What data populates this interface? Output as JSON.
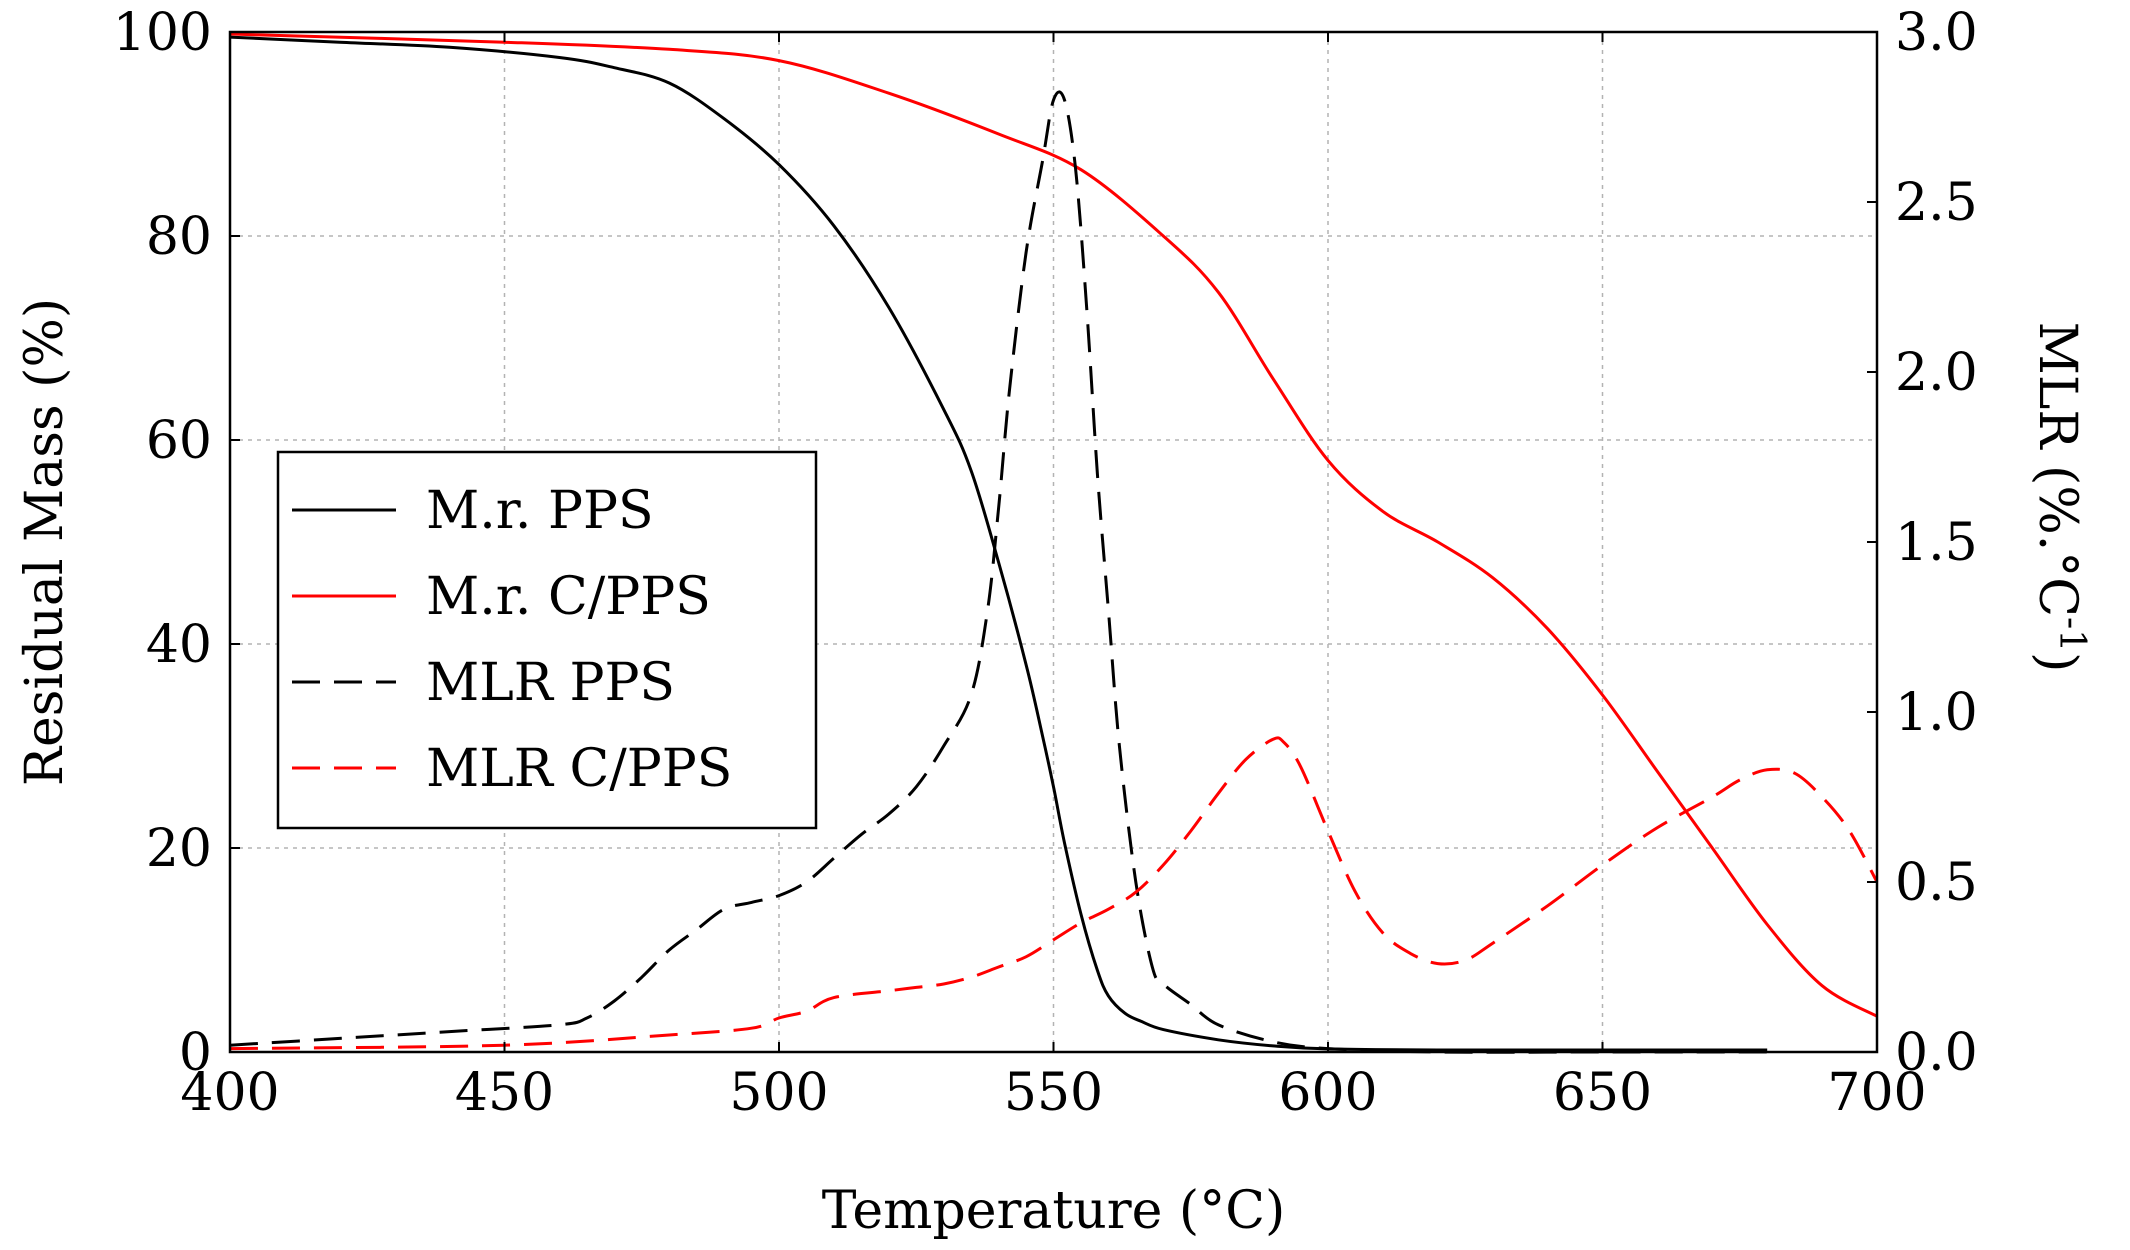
{
  "chart_data": {
    "type": "line",
    "xlabel": "Temperature (°C)",
    "ylabel": "Residual Mass (%)",
    "y2label": "MLR (%.°C",
    "y2label_sup": "-1",
    "y2label_close": ")",
    "xlim": [
      400,
      700
    ],
    "ylim": [
      0,
      100
    ],
    "y2lim": [
      0,
      3.0
    ],
    "xticks": [
      "400",
      "450",
      "500",
      "550",
      "600",
      "650",
      "700"
    ],
    "yticks": [
      "0",
      "20",
      "40",
      "60",
      "80",
      "100"
    ],
    "y2ticks": [
      "0.0",
      "0.5",
      "1.0",
      "1.5",
      "2.0",
      "2.5",
      "3.0"
    ],
    "grid": true,
    "legend_position": "center-left",
    "legend": [
      "M.r. PPS",
      "M.r. C/PPS",
      "MLR PPS",
      "MLR C/PPS"
    ],
    "series": [
      {
        "name": "M.r. PPS",
        "axis": "left",
        "color": "#000000",
        "dash": "solid",
        "x": [
          400,
          420,
          440,
          460,
          470,
          480,
          490,
          500,
          510,
          520,
          530,
          535,
          540,
          545,
          548,
          550,
          552,
          555,
          558,
          560,
          563,
          566,
          570,
          580,
          590,
          600,
          620,
          650,
          680
        ],
        "y": [
          99.5,
          99.0,
          98.5,
          97.5,
          96.5,
          95.0,
          91.5,
          87.0,
          81.0,
          73.0,
          63.0,
          57.0,
          48.0,
          38.0,
          31.0,
          26.0,
          20.5,
          13.5,
          8.0,
          5.5,
          3.8,
          3.0,
          2.2,
          1.2,
          0.6,
          0.3,
          0.2,
          0.2,
          0.2
        ]
      },
      {
        "name": "M.r. C/PPS",
        "axis": "left",
        "color": "#ff0000",
        "dash": "solid",
        "x": [
          400,
          450,
          480,
          500,
          520,
          540,
          555,
          570,
          580,
          590,
          600,
          610,
          620,
          630,
          640,
          650,
          660,
          670,
          680,
          690,
          700
        ],
        "y": [
          99.8,
          99.0,
          98.3,
          97.2,
          94.0,
          90.0,
          86.5,
          80.0,
          74.5,
          66.0,
          58.0,
          53.0,
          50.0,
          46.5,
          41.5,
          35.0,
          27.5,
          20.0,
          12.5,
          6.5,
          3.5
        ]
      },
      {
        "name": "MLR PPS",
        "axis": "right",
        "color": "#000000",
        "dash": "dashed",
        "x": [
          400,
          420,
          440,
          460,
          465,
          470,
          475,
          480,
          485,
          490,
          495,
          500,
          505,
          510,
          515,
          520,
          525,
          530,
          535,
          538,
          540,
          542,
          545,
          548,
          550,
          552,
          554,
          556,
          558,
          560,
          562,
          565,
          568,
          570,
          575,
          580,
          590,
          600,
          620,
          650,
          680
        ],
        "y": [
          0.02,
          0.04,
          0.06,
          0.08,
          0.1,
          0.15,
          0.22,
          0.3,
          0.36,
          0.42,
          0.44,
          0.46,
          0.5,
          0.57,
          0.64,
          0.7,
          0.78,
          0.9,
          1.05,
          1.3,
          1.6,
          1.95,
          2.35,
          2.62,
          2.8,
          2.8,
          2.6,
          2.2,
          1.7,
          1.3,
          0.9,
          0.5,
          0.25,
          0.2,
          0.14,
          0.08,
          0.03,
          0.01,
          0.0,
          0.0,
          0.0
        ]
      },
      {
        "name": "MLR C/PPS",
        "axis": "right",
        "color": "#ff0000",
        "dash": "dashed",
        "x": [
          400,
          450,
          480,
          495,
          500,
          505,
          510,
          520,
          525,
          530,
          535,
          540,
          545,
          550,
          555,
          560,
          565,
          570,
          575,
          580,
          585,
          590,
          592,
          595,
          600,
          605,
          610,
          615,
          620,
          625,
          630,
          640,
          650,
          660,
          670,
          675,
          680,
          685,
          690,
          695,
          700
        ],
        "y": [
          0.01,
          0.02,
          0.05,
          0.07,
          0.1,
          0.12,
          0.16,
          0.18,
          0.19,
          0.2,
          0.22,
          0.25,
          0.28,
          0.33,
          0.38,
          0.42,
          0.47,
          0.55,
          0.65,
          0.76,
          0.86,
          0.92,
          0.91,
          0.84,
          0.65,
          0.47,
          0.35,
          0.29,
          0.26,
          0.27,
          0.32,
          0.43,
          0.55,
          0.66,
          0.75,
          0.8,
          0.83,
          0.82,
          0.75,
          0.65,
          0.5
        ]
      }
    ]
  }
}
